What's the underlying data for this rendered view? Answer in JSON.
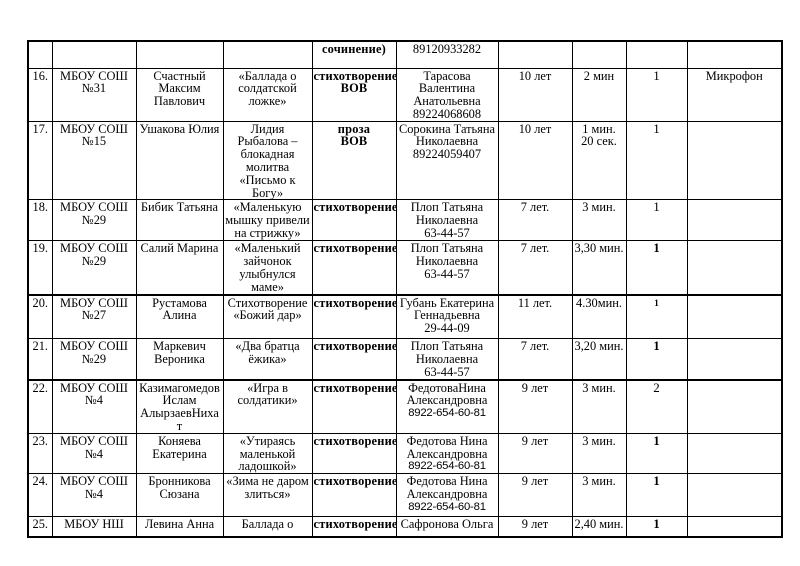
{
  "page": {
    "background": "#ffffff",
    "border_color": "#000000",
    "text_color": "#000000"
  },
  "table": {
    "rows": [
      {
        "num": "",
        "school": "",
        "student": "",
        "title": "",
        "type": "сочинение)",
        "teacher": "89120933282",
        "age": "",
        "duration": "",
        "count": "",
        "count_style": "normal",
        "equipment": "",
        "thick_bottom": false
      },
      {
        "num": "16.",
        "school": "МБОУ СОШ\n№31",
        "student": "Счастный\nМаксим\nПавлович",
        "title": "«Баллада о\nсолдатской\nложке»",
        "type": "стихотворение\nВОВ",
        "teacher": "Тарасова\nВалентина\nАнатольевна\n89224068608",
        "age": "10 лет",
        "duration": "2 мин",
        "count": "1",
        "count_style": "normal",
        "equipment": "Микрофон",
        "thick_bottom": false
      },
      {
        "num": "17.",
        "school": "МБОУ СОШ\n№15",
        "student": "Ушакова Юлия",
        "title": "Лидия\nРыбалова –\nблокадная\nмолитва\n«Письмо к\nБогу»",
        "type": "проза\nВОВ",
        "teacher": "Сорокина Татьяна\nНиколаевна\n89224059407",
        "age": "10 лет",
        "duration": "1 мин.\n20 сек.",
        "count": "1",
        "count_style": "normal",
        "equipment": "",
        "thick_bottom": false
      },
      {
        "num": "18.",
        "school": "МБОУ СОШ\n№29",
        "student": "Бибик Татьяна",
        "title": "«Маленькую\nмышку привели\nна стрижку»",
        "type": "стихотворение",
        "teacher": "Плоп Татьяна\nНиколаевна\n63-44-57",
        "age": "7 лет.",
        "duration": "3 мин.",
        "count": "1",
        "count_style": "normal",
        "equipment": "",
        "thick_bottom": false
      },
      {
        "num": "19.",
        "school": "МБОУ СОШ\n№29",
        "student": "Салий Марина",
        "title": "«Маленький\nзайчонок\nулыбнулся\nмаме»",
        "type": "стихотворение",
        "teacher": "Плоп Татьяна\nНиколаевна\n63-44-57",
        "age": "7 лет.",
        "duration": "3,30 мин.",
        "count": "1",
        "count_style": "bold",
        "equipment": "",
        "thick_bottom": true
      },
      {
        "num": "20.",
        "school": "МБОУ СОШ\n№27",
        "student": "Рустамова\nАлина",
        "title": "Стихотворение\n«Божий дар»",
        "type": "стихотворение",
        "teacher": "Губань Екатерина\nГеннадьевна\n29-44-09",
        "age": "11 лет.",
        "duration": "4.30мин.",
        "count": "1",
        "count_style": "bold-small",
        "equipment": "",
        "thick_bottom": false
      },
      {
        "num": "21.",
        "school": "МБОУ СОШ\n№29",
        "student": "Маркевич\nВероника",
        "title": "«Два братца\nёжика»",
        "type": "стихотворение",
        "teacher": "Плоп Татьяна\nНиколаевна\n63-44-57",
        "age": "7 лет.",
        "duration": "3,20 мин.",
        "count": "1",
        "count_style": "bold",
        "equipment": "",
        "thick_bottom": true
      },
      {
        "num": "22.",
        "school": "МБОУ СОШ\n№4",
        "student": "Казимагомедов\nИслам\nАлырзаевНиха\nт",
        "title": "«Игра в\nсолдатики»",
        "type": "стихотворение",
        "teacher": "ФедотоваНина\nАлександровна\n8922-654-60-81",
        "teacher_sans_line": 2,
        "age": "9 лет",
        "duration": "3 мин.",
        "count": "2",
        "count_style": "normal",
        "equipment": "",
        "thick_bottom": false
      },
      {
        "num": "23.",
        "school": "МБОУ СОШ\n№4",
        "student": "Коняева\nЕкатерина",
        "title": "«Утираясь\nмаленькой\nладошкой»",
        "type": "стихотворение",
        "teacher": "Федотова Нина\nАлександровна\n8922-654-60-81",
        "teacher_sans_line": 2,
        "age": "9 лет",
        "duration": "3 мин.",
        "count": "1",
        "count_style": "bold",
        "equipment": "",
        "thick_bottom": false
      },
      {
        "num": "24.",
        "school": "МБОУ СОШ\n№4",
        "student": "Бронникова\nСюзана",
        "title": "«Зима не даром\nзлиться»",
        "type": "стихотворение",
        "teacher": "Федотова Нина\nАлександровна\n8922-654-60-81",
        "teacher_sans_line": 2,
        "age": "9 лет",
        "duration": "3 мин.",
        "count": "1",
        "count_style": "bold",
        "equipment": "",
        "thick_bottom": false
      },
      {
        "num": "25.",
        "school": "МБОУ НШ",
        "student": "Левина Анна",
        "title": "Баллада о",
        "type": "стихотворение",
        "teacher": "Сафронова Ольга",
        "age": "9 лет",
        "duration": "2,40 мин.",
        "count": "1",
        "count_style": "bold",
        "equipment": "",
        "thick_bottom": false
      }
    ]
  }
}
